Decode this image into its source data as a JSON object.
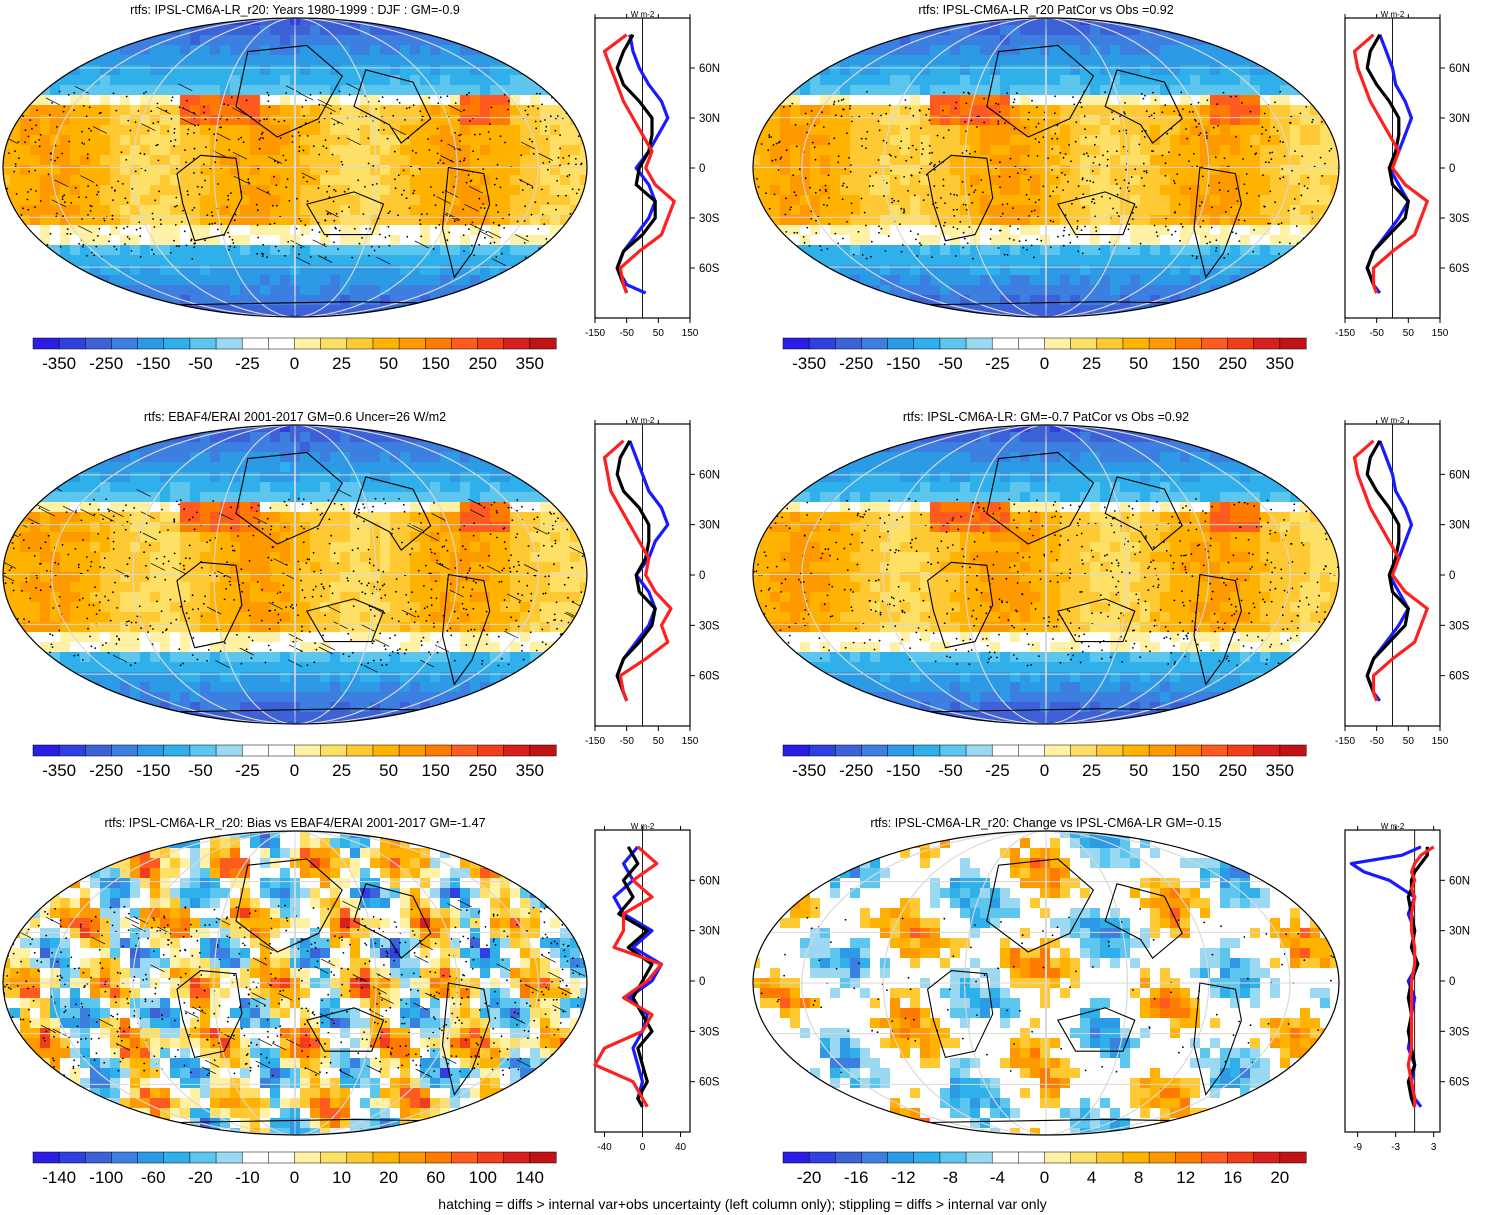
{
  "footer": "hatching = diffs > internal var+obs uncertainty (left column only); stippling = diffs > internal var only",
  "scales": {
    "wide": {
      "labels": [
        "-350",
        "-250",
        "-150",
        "-50",
        "-25",
        "0",
        "25",
        "50",
        "150",
        "250",
        "350"
      ],
      "colors": [
        "#2b1de6",
        "#3040e0",
        "#3d62d8",
        "#3d7fe0",
        "#2d9ae6",
        "#2fb0ea",
        "#5cc6ef",
        "#9bd8f2",
        "#ffffff",
        "#ffffff",
        "#fff2a6",
        "#ffe066",
        "#ffc933",
        "#ffb300",
        "#ff9900",
        "#ff7a00",
        "#ff5a1f",
        "#f23d1a",
        "#d91e1e",
        "#c01414"
      ]
    },
    "bias": {
      "labels": [
        "-140",
        "-100",
        "-60",
        "-20",
        "-10",
        "0",
        "10",
        "20",
        "60",
        "100",
        "140"
      ],
      "colors": [
        "#2b1de6",
        "#3040e0",
        "#3d62d8",
        "#3d7fe0",
        "#2d9ae6",
        "#2fb0ea",
        "#5cc6ef",
        "#9bd8f2",
        "#ffffff",
        "#ffffff",
        "#fff2a6",
        "#ffe066",
        "#ffc933",
        "#ffb300",
        "#ff9900",
        "#ff7a00",
        "#ff5a1f",
        "#f23d1a",
        "#d91e1e",
        "#c01414"
      ]
    },
    "change": {
      "labels": [
        "-20",
        "-16",
        "-12",
        "-8",
        "-4",
        "0",
        "4",
        "8",
        "12",
        "16",
        "20"
      ],
      "colors": [
        "#2b1de6",
        "#3040e0",
        "#3d62d8",
        "#3d7fe0",
        "#2d9ae6",
        "#2fb0ea",
        "#5cc6ef",
        "#9bd8f2",
        "#ffffff",
        "#ffffff",
        "#fff2a6",
        "#ffe066",
        "#ffc933",
        "#ffb300",
        "#ff9900",
        "#ff7a00",
        "#ff5a1f",
        "#f23d1a",
        "#d91e1e",
        "#c01414"
      ]
    }
  },
  "chart_data": [
    {
      "type": "heatmap",
      "title": "rtfs: IPSL-CM6A-LR_r20: Years 1980-1999 : DJF : GM=-0.9",
      "scale": "wide",
      "hatched": true,
      "zonal": {
        "unit": "W m-2",
        "xticks": [
          "-150",
          "-50",
          "50",
          "150"
        ],
        "xlim": [
          -150,
          150
        ],
        "yticks": [
          "60N",
          "30N",
          "0",
          "30S",
          "60S"
        ],
        "series": [
          {
            "color": "#1a1aff",
            "lat": [
              80,
              70,
              60,
              50,
              40,
              30,
              20,
              10,
              0,
              -10,
              -20,
              -30,
              -40,
              -50,
              -60,
              -70,
              -75
            ],
            "values": [
              -40,
              -30,
              -10,
              20,
              60,
              80,
              50,
              20,
              -20,
              20,
              40,
              20,
              -20,
              -60,
              -80,
              -50,
              10
            ]
          },
          {
            "color": "#000000",
            "lat": [
              80,
              70,
              60,
              50,
              40,
              30,
              20,
              10,
              0,
              -10,
              -20,
              -30,
              -40,
              -50,
              -60,
              -70,
              -75
            ],
            "values": [
              -30,
              -60,
              -80,
              -60,
              -10,
              30,
              30,
              20,
              -10,
              -20,
              40,
              40,
              0,
              -60,
              -80,
              -60,
              -50
            ]
          },
          {
            "color": "#ff2020",
            "lat": [
              80,
              70,
              60,
              50,
              40,
              30,
              20,
              10,
              0,
              -10,
              -20,
              -30,
              -40,
              -50,
              -60,
              -70,
              -75
            ],
            "values": [
              -50,
              -120,
              -100,
              -80,
              -60,
              -30,
              0,
              30,
              10,
              40,
              100,
              80,
              60,
              -10,
              -70,
              -60,
              -50
            ]
          }
        ]
      }
    },
    {
      "type": "heatmap",
      "title": "rtfs: IPSL-CM6A-LR_r20 PatCor vs Obs =0.92",
      "scale": "wide",
      "hatched": false,
      "zonal": {
        "unit": "W m-2",
        "xticks": [
          "-150",
          "-50",
          "50",
          "150"
        ],
        "xlim": [
          -150,
          150
        ],
        "yticks": [
          "60N",
          "30N",
          "0",
          "30S",
          "60S"
        ],
        "series": [
          {
            "color": "#1a1aff",
            "lat": [
              80,
              70,
              60,
              50,
              40,
              30,
              20,
              10,
              0,
              -10,
              -20,
              -30,
              -40,
              -50,
              -60,
              -70,
              -75
            ],
            "values": [
              -40,
              -20,
              0,
              10,
              40,
              60,
              40,
              20,
              -10,
              20,
              50,
              20,
              -20,
              -60,
              -80,
              -60,
              -40
            ]
          },
          {
            "color": "#000000",
            "lat": [
              80,
              70,
              60,
              50,
              40,
              30,
              20,
              10,
              0,
              -10,
              -20,
              -30,
              -40,
              -50,
              -60,
              -70,
              -75
            ],
            "values": [
              -40,
              -70,
              -80,
              -50,
              -10,
              20,
              20,
              10,
              -10,
              0,
              50,
              40,
              -10,
              -60,
              -80,
              -60,
              -50
            ]
          },
          {
            "color": "#ff2020",
            "lat": [
              80,
              70,
              60,
              50,
              40,
              30,
              20,
              10,
              0,
              -10,
              -20,
              -30,
              -40,
              -50,
              -60,
              -70,
              -75
            ],
            "values": [
              -60,
              -120,
              -110,
              -90,
              -70,
              -40,
              -10,
              20,
              0,
              40,
              110,
              90,
              70,
              0,
              -60,
              -60,
              -50
            ]
          }
        ]
      }
    },
    {
      "type": "heatmap",
      "title": "rtfs: EBAF4/ERAI 2001-2017 GM=0.6 Uncer=26 W/m2",
      "scale": "wide",
      "hatched": true,
      "zonal": {
        "unit": "W m-2",
        "xticks": [
          "-150",
          "-50",
          "50",
          "150"
        ],
        "xlim": [
          -150,
          150
        ],
        "yticks": [
          "60N",
          "30N",
          "0",
          "30S",
          "60S"
        ],
        "series": [
          {
            "color": "#1a1aff",
            "lat": [
              80,
              70,
              60,
              50,
              40,
              30,
              20,
              10,
              0,
              -10,
              -20,
              -30,
              -40,
              -50,
              -60,
              -70,
              -75
            ],
            "values": [
              -40,
              -20,
              0,
              20,
              60,
              80,
              40,
              20,
              -20,
              20,
              40,
              20,
              -20,
              -60,
              -80,
              -60,
              -50
            ]
          },
          {
            "color": "#000000",
            "lat": [
              80,
              70,
              60,
              50,
              40,
              30,
              20,
              10,
              0,
              -10,
              -20,
              -30,
              -40,
              -50,
              -60,
              -70,
              -75
            ],
            "values": [
              -40,
              -70,
              -80,
              -60,
              -10,
              20,
              20,
              10,
              -20,
              -10,
              40,
              30,
              -10,
              -60,
              -80,
              -60,
              -50
            ]
          },
          {
            "color": "#ff2020",
            "lat": [
              80,
              70,
              60,
              50,
              40,
              30,
              20,
              10,
              0,
              -10,
              -20,
              -30,
              -40,
              -50,
              -60,
              -70,
              -75
            ],
            "values": [
              -60,
              -120,
              -110,
              -100,
              -70,
              -40,
              -10,
              20,
              10,
              40,
              90,
              60,
              80,
              10,
              -70,
              -60,
              -50
            ]
          }
        ]
      }
    },
    {
      "type": "heatmap",
      "title": "rtfs: IPSL-CM6A-LR: GM=-0.7 PatCor vs Obs =0.92",
      "scale": "wide",
      "hatched": false,
      "zonal": {
        "unit": "W m-2",
        "xticks": [
          "-150",
          "-50",
          "50",
          "150"
        ],
        "xlim": [
          -150,
          150
        ],
        "yticks": [
          "60N",
          "30N",
          "0",
          "30S",
          "60S"
        ],
        "series": [
          {
            "color": "#1a1aff",
            "lat": [
              80,
              70,
              60,
              50,
              40,
              30,
              20,
              10,
              0,
              -10,
              -20,
              -30,
              -40,
              -50,
              -60,
              -70,
              -75
            ],
            "values": [
              -40,
              -20,
              0,
              10,
              40,
              60,
              40,
              20,
              -10,
              20,
              50,
              20,
              -20,
              -60,
              -80,
              -60,
              -40
            ]
          },
          {
            "color": "#000000",
            "lat": [
              80,
              70,
              60,
              50,
              40,
              30,
              20,
              10,
              0,
              -10,
              -20,
              -30,
              -40,
              -50,
              -60,
              -70,
              -75
            ],
            "values": [
              -40,
              -70,
              -80,
              -50,
              -10,
              20,
              20,
              10,
              -10,
              0,
              50,
              40,
              -10,
              -60,
              -80,
              -60,
              -50
            ]
          },
          {
            "color": "#ff2020",
            "lat": [
              80,
              70,
              60,
              50,
              40,
              30,
              20,
              10,
              0,
              -10,
              -20,
              -30,
              -40,
              -50,
              -60,
              -70,
              -75
            ],
            "values": [
              -60,
              -120,
              -110,
              -90,
              -70,
              -40,
              -10,
              20,
              0,
              40,
              110,
              90,
              70,
              0,
              -60,
              -60,
              -50
            ]
          }
        ]
      }
    },
    {
      "type": "heatmap",
      "title": "rtfs: IPSL-CM6A-LR_r20: Bias vs EBAF4/ERAI 2001-2017 GM=-1.47",
      "scale": "bias",
      "hatched": true,
      "zonal": {
        "unit": "W m-2",
        "xticks": [
          "-40",
          "0",
          "40"
        ],
        "xlim": [
          -50,
          50
        ],
        "yticks": [
          "60N",
          "30N",
          "0",
          "30S",
          "60S"
        ],
        "series": [
          {
            "color": "#1a1aff",
            "lat": [
              80,
              70,
              60,
              50,
              40,
              30,
              20,
              10,
              0,
              -10,
              -20,
              -30,
              -40,
              -50,
              -60,
              -70,
              -75
            ],
            "values": [
              -5,
              -20,
              -10,
              -30,
              -20,
              10,
              -10,
              20,
              10,
              -15,
              5,
              0,
              -10,
              -5,
              0,
              -5,
              0
            ]
          },
          {
            "color": "#000000",
            "lat": [
              80,
              70,
              60,
              50,
              40,
              30,
              20,
              10,
              0,
              -10,
              -20,
              -30,
              -40,
              -50,
              -60,
              -70,
              -75
            ],
            "values": [
              -15,
              -5,
              -20,
              -10,
              -25,
              5,
              -15,
              10,
              0,
              -10,
              0,
              10,
              -5,
              0,
              5,
              -5,
              0
            ]
          },
          {
            "color": "#ff2020",
            "lat": [
              80,
              70,
              60,
              50,
              40,
              30,
              20,
              10,
              0,
              -10,
              -20,
              -30,
              -40,
              -50,
              -60,
              -70,
              -75
            ],
            "values": [
              -5,
              15,
              -10,
              10,
              -20,
              -20,
              -30,
              20,
              5,
              -20,
              10,
              0,
              -40,
              -50,
              -10,
              0,
              5
            ]
          }
        ]
      }
    },
    {
      "type": "heatmap",
      "title": "rtfs: IPSL-CM6A-LR_r20: Change vs IPSL-CM6A-LR GM=-0.15",
      "scale": "change",
      "hatched": false,
      "zonal": {
        "unit": "W m-2",
        "xticks": [
          "-9",
          "-3",
          "3"
        ],
        "xlim": [
          -11,
          4
        ],
        "yticks": [
          "60N",
          "30N",
          "0",
          "30S",
          "60S"
        ],
        "series": [
          {
            "color": "#1a1aff",
            "lat": [
              80,
              75,
              70,
              65,
              60,
              55,
              50,
              40,
              30,
              20,
              10,
              0,
              -10,
              -20,
              -30,
              -40,
              -50,
              -60,
              -70,
              -75
            ],
            "values": [
              1,
              -2,
              -10,
              -8,
              -4,
              -2,
              0,
              -1,
              0,
              -0.5,
              0.5,
              -1,
              0,
              -0.5,
              -0.5,
              -1,
              0,
              -0.5,
              0,
              1
            ]
          },
          {
            "color": "#000000",
            "lat": [
              80,
              75,
              70,
              65,
              60,
              55,
              50,
              40,
              30,
              20,
              10,
              0,
              -10,
              -20,
              -30,
              -40,
              -50,
              -60,
              -70,
              -75
            ],
            "values": [
              2,
              2,
              1,
              0,
              -0.5,
              -0.5,
              -1,
              -0.5,
              0,
              -0.5,
              0.5,
              -0.5,
              -1,
              -0.5,
              -1,
              -0.5,
              0,
              -1,
              -0.5,
              0
            ]
          },
          {
            "color": "#ff2020",
            "lat": [
              80,
              75,
              70,
              65,
              60,
              55,
              50,
              40,
              30,
              20,
              10,
              0,
              -10,
              -20,
              -30,
              -40,
              -50,
              -60,
              -70,
              -75
            ],
            "values": [
              3,
              1,
              0,
              -0.5,
              0,
              -0.5,
              0,
              -0.5,
              -0.5,
              0,
              0,
              -0.5,
              -0.5,
              -0.5,
              -0.5,
              -0.5,
              -1,
              -0.5,
              0,
              0
            ]
          }
        ]
      }
    }
  ]
}
